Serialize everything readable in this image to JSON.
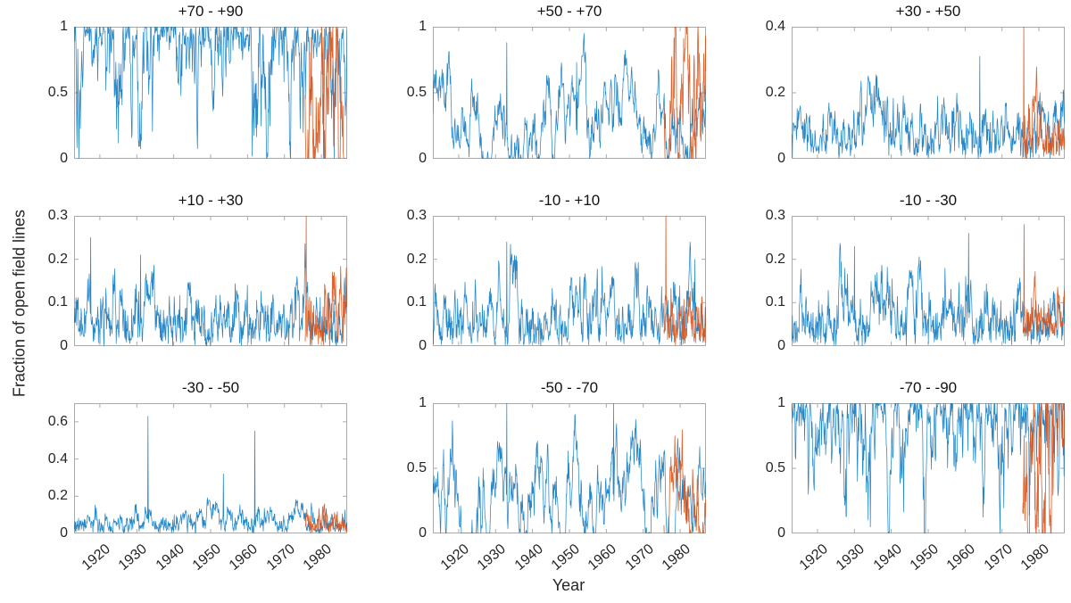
{
  "figure": {
    "xlabel": "Year",
    "ylabel": "Fraction of open field lines",
    "colors": {
      "series_blue": "#0072BD",
      "series_orange": "#D95319",
      "axis_line": "#aaaaaa",
      "tick_text": "#262626",
      "title_text": "#111111",
      "background": "#ffffff"
    }
  },
  "chart_data": {
    "type": "line",
    "grid": [
      3,
      3
    ],
    "title": "",
    "xlabel": "Year",
    "ylabel": "Fraction of open field lines",
    "x_range": [
      1913,
      1987
    ],
    "x_ticks": [
      1920,
      1930,
      1940,
      1950,
      1960,
      1970,
      1980
    ],
    "legend": "none",
    "grid_lines": "off",
    "series_colors": {
      "blue": "#0072BD",
      "orange": "#D95319"
    },
    "orange_start_year": 1975.6,
    "panels": [
      {
        "title": "+70 - +90",
        "row": 0,
        "col": 0,
        "ylim": [
          0,
          1
        ],
        "yticks": [
          0,
          0.5,
          1
        ],
        "summary": "Polar north band: blue fraction saturates at 1 with frequent sharp dips to 0 across 1913-1987; orange series 1976-1987 swings 0-0.95 ending near 0.9.",
        "blue": {
          "seed": 101,
          "mode": "sat",
          "n": 740,
          "x0": 1913,
          "aS": 0.1,
          "aF": 0.5,
          "k": 2.2,
          "p": 1.6,
          "jit": 0.15,
          "spikes": []
        },
        "orange": {
          "seed": 121,
          "mode": "humps",
          "n": 150,
          "x0": 1975.6,
          "aS": 0.12,
          "aF": 0.5,
          "base": 0.45,
          "k": 2.2,
          "jit": 0.12,
          "spikes": []
        }
      },
      {
        "title": "+50 - +70",
        "row": 0,
        "col": 1,
        "ylim": [
          0,
          1
        ],
        "yticks": [
          0,
          0.5,
          1
        ],
        "summary": "Blue oscillates 0-0.9 in multi-year humps (max ~0.88 near 1933, ~0.73 near 1952); orange 1976-1987 peaks ~0.65 then drops near 0 around 1981 and recovers to ~0.3.",
        "blue": {
          "seed": 102,
          "mode": "humps",
          "n": 740,
          "x0": 1913,
          "aS": 0.06,
          "aF": 0.45,
          "base": 0.28,
          "k": 1.6,
          "jit": 0.08,
          "spikes": [
            [
              1933,
              0.88
            ],
            [
              1952,
              0.73
            ]
          ]
        },
        "orange": {
          "seed": 122,
          "mode": "humps",
          "n": 150,
          "x0": 1975.6,
          "aS": 0.12,
          "aF": 0.5,
          "base": 0.22,
          "k": 1.8,
          "jit": 0.1,
          "spikes": []
        }
      },
      {
        "title": "+30 - +50",
        "row": 0,
        "col": 2,
        "ylim": [
          0,
          0.4
        ],
        "yticks": [
          0,
          0.2,
          0.4
        ],
        "summary": "Blue noisy 0-0.31 (peaks ~0.27-0.31); orange 1976-1987 mostly 0-0.15 with one spike clipped at the 0.4 axis top near 1976.",
        "blue": {
          "seed": 103,
          "mode": "spiky",
          "n": 740,
          "x0": 1913,
          "aS": 0.06,
          "aF": 0.45,
          "base": 0,
          "k": 0.6,
          "jit": 0.12,
          "spikes": [
            [
              1964,
              0.31
            ]
          ]
        },
        "orange": {
          "seed": 123,
          "mode": "spiky",
          "n": 150,
          "x0": 1975.6,
          "aS": 0.12,
          "aF": 0.5,
          "base": 0,
          "k": 0.35,
          "jit": 0.08,
          "spikes": [
            [
              1975.9,
              0.55
            ]
          ]
        }
      },
      {
        "title": "+10 - +30",
        "row": 1,
        "col": 0,
        "ylim": [
          0,
          0.3
        ],
        "yticks": [
          0,
          0.1,
          0.2,
          0.3
        ],
        "summary": "Blue noisy 0-0.26 (peaks ~0.25 near 1917-1919, ~0.21 near 1931); orange spike clipped at 0.3 near 1976 then noisy 0-0.12.",
        "blue": {
          "seed": 104,
          "mode": "spiky",
          "n": 740,
          "x0": 1913,
          "aS": 0.06,
          "aF": 0.45,
          "base": 0,
          "k": 0.5,
          "jit": 0.1,
          "spikes": [
            [
              1917.5,
              0.25
            ],
            [
              1931,
              0.21
            ]
          ]
        },
        "orange": {
          "seed": 124,
          "mode": "spiky",
          "n": 150,
          "x0": 1975.6,
          "aS": 0.12,
          "aF": 0.5,
          "base": 0,
          "k": 0.28,
          "jit": 0.08,
          "spikes": [
            [
              1975.9,
              0.42
            ]
          ]
        }
      },
      {
        "title": "-10 - +10",
        "row": 1,
        "col": 1,
        "ylim": [
          0,
          0.3
        ],
        "yticks": [
          0,
          0.1,
          0.2,
          0.3
        ],
        "summary": "Blue noisy 0-0.24 (peak ~0.24 near 1933, ~0.20 near 1984); orange spike clipped at 0.3 near 1976 then 0-0.12.",
        "blue": {
          "seed": 105,
          "mode": "spiky",
          "n": 740,
          "x0": 1913,
          "aS": 0.06,
          "aF": 0.45,
          "base": 0,
          "k": 0.48,
          "jit": 0.1,
          "spikes": [
            [
              1933,
              0.24
            ],
            [
              1984,
              0.2
            ]
          ]
        },
        "orange": {
          "seed": 125,
          "mode": "spiky",
          "n": 150,
          "x0": 1975.6,
          "aS": 0.12,
          "aF": 0.5,
          "base": 0,
          "k": 0.26,
          "jit": 0.08,
          "spikes": [
            [
              1976.1,
              0.42
            ]
          ]
        }
      },
      {
        "title": "-10 - -30",
        "row": 1,
        "col": 2,
        "ylim": [
          0,
          0.3
        ],
        "yticks": [
          0,
          0.1,
          0.2,
          0.3
        ],
        "summary": "Blue noisy 0-0.26 (peak ~0.26 near 1961, ~0.23 near 1930); orange spike to ~0.28 near 1976 then band 0.02-0.07.",
        "blue": {
          "seed": 106,
          "mode": "spiky",
          "n": 740,
          "x0": 1913,
          "aS": 0.06,
          "aF": 0.45,
          "base": 0,
          "k": 0.5,
          "jit": 0.1,
          "spikes": [
            [
              1930,
              0.23
            ],
            [
              1961,
              0.26
            ]
          ]
        },
        "orange": {
          "seed": 126,
          "mode": "spiky",
          "n": 150,
          "x0": 1975.6,
          "aS": 0.12,
          "aF": 0.5,
          "base": 0.02,
          "k": 0.22,
          "jit": 0.06,
          "spikes": [
            [
              1976.0,
              0.28
            ]
          ]
        }
      },
      {
        "title": "-30 - -50",
        "row": 2,
        "col": 0,
        "ylim": [
          0,
          0.7
        ],
        "yticks": [
          0,
          0.2,
          0.4,
          0.6
        ],
        "summary": "Blue mostly 0-0.2 with large spikes ~0.63 near 1933, ~0.32 near 1953, ~0.55 near 1962; orange 1976-1987 small, 0-0.17.",
        "blue": {
          "seed": 107,
          "mode": "spiky",
          "n": 740,
          "x0": 1913,
          "aS": 0.06,
          "aF": 0.45,
          "base": 0,
          "k": 0.42,
          "jit": 0.1,
          "spikes": [
            [
              1933,
              0.63
            ],
            [
              1953.5,
              0.32
            ],
            [
              1962,
              0.55
            ]
          ]
        },
        "orange": {
          "seed": 127,
          "mode": "spiky",
          "n": 150,
          "x0": 1975.6,
          "aS": 0.12,
          "aF": 0.5,
          "base": 0,
          "k": 0.3,
          "jit": 0.08,
          "spikes": []
        }
      },
      {
        "title": "-50 - -70",
        "row": 2,
        "col": 1,
        "ylim": [
          0,
          1
        ],
        "yticks": [
          0,
          0.5,
          1
        ],
        "summary": "Blue broad humps 0-1.0 (tops ~1.0 near 1932-1934 and 1962, ~0.8 near 1952); orange 1976-1987 varies 0-0.45.",
        "blue": {
          "seed": 108,
          "mode": "humps",
          "n": 740,
          "x0": 1913,
          "aS": 0.06,
          "aF": 0.45,
          "base": 0.35,
          "k": 2.0,
          "jit": 0.08,
          "spikes": [
            [
              1933,
              1.0
            ],
            [
              1962,
              1.0
            ]
          ]
        },
        "orange": {
          "seed": 128,
          "mode": "humps",
          "n": 150,
          "x0": 1975.6,
          "aS": 0.12,
          "aF": 0.5,
          "base": 0.16,
          "k": 1.0,
          "jit": 0.1,
          "spikes": []
        }
      },
      {
        "title": "-70 - -90",
        "row": 2,
        "col": 2,
        "ylim": [
          0,
          1
        ],
        "yticks": [
          0,
          0.5,
          1
        ],
        "summary": "Polar south band: blue saturates at 1 with sharp dips to 0; orange 1976-1987 swings 0-0.95 with deep minimum near 1981 and recovery to ~1 by 1987.",
        "blue": {
          "seed": 109,
          "mode": "sat",
          "n": 740,
          "x0": 1913,
          "aS": 0.1,
          "aF": 0.5,
          "k": 2.2,
          "p": 1.6,
          "jit": 0.15,
          "spikes": []
        },
        "orange": {
          "seed": 129,
          "mode": "humps",
          "n": 150,
          "x0": 1975.6,
          "aS": 0.12,
          "aF": 0.5,
          "base": 0.5,
          "k": 2.6,
          "jit": 0.12,
          "spikes": []
        }
      }
    ]
  }
}
